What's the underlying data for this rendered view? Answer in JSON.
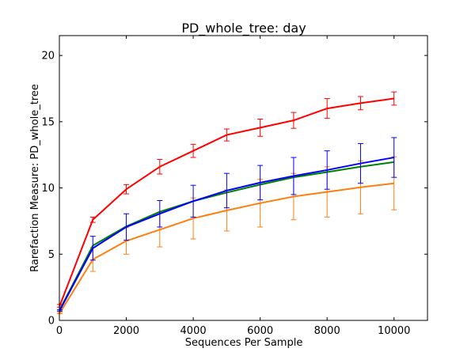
{
  "chart_data": {
    "type": "line",
    "title": "PD_whole_tree: day",
    "xlabel": "Sequences Per Sample",
    "ylabel": "Rarefaction Measure: PD_whole_tree",
    "xlim": [
      0,
      11000
    ],
    "ylim": [
      0,
      21.5
    ],
    "x_ticks": [
      0,
      2000,
      4000,
      6000,
      8000,
      10000
    ],
    "y_ticks": [
      0,
      5,
      10,
      15,
      20
    ],
    "grid": false,
    "legend": null,
    "x": [
      10,
      1000,
      2000,
      3000,
      4000,
      5000,
      6000,
      7000,
      8000,
      9000,
      10000
    ],
    "series": [
      {
        "color": "#ff0000",
        "values": [
          1.1,
          7.6,
          9.9,
          11.6,
          12.8,
          14.0,
          14.55,
          15.1,
          16.0,
          16.4,
          16.75
        ],
        "errors": [
          0.1,
          0.2,
          0.35,
          0.55,
          0.5,
          0.45,
          0.65,
          0.6,
          0.75,
          0.5,
          0.5
        ]
      },
      {
        "color": "#ff7f0e",
        "values": [
          0.55,
          4.6,
          6.0,
          6.85,
          7.7,
          8.3,
          8.85,
          9.35,
          9.7,
          10.05,
          10.35
        ],
        "errors": [
          0.05,
          0.9,
          1.0,
          1.3,
          1.55,
          1.55,
          1.8,
          1.75,
          1.9,
          2.0,
          2.0
        ]
      },
      {
        "color": "#008000",
        "values": [
          0.8,
          5.65,
          7.1,
          8.2,
          9.0,
          9.65,
          10.25,
          10.8,
          11.2,
          11.6,
          11.95
        ],
        "errors": []
      },
      {
        "color": "#0000ff",
        "values": [
          0.75,
          5.45,
          7.05,
          8.05,
          9.0,
          9.8,
          10.4,
          10.9,
          11.35,
          11.85,
          12.3
        ],
        "errors": [
          0.05,
          0.9,
          1.0,
          1.0,
          1.2,
          1.3,
          1.3,
          1.4,
          1.45,
          1.5,
          1.5
        ]
      }
    ]
  }
}
